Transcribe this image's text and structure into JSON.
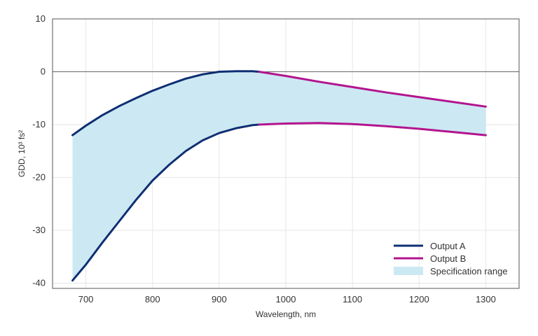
{
  "chart_data": {
    "type": "line",
    "xlabel": "Wavelength, nm",
    "ylabel": "GDD, 10³ fs²",
    "xlim": [
      650,
      1350
    ],
    "ylim": [
      -41,
      10
    ],
    "x_ticks": [
      700,
      800,
      900,
      1000,
      1100,
      1200,
      1300
    ],
    "y_ticks": [
      10,
      0,
      -10,
      -20,
      -30,
      -40
    ],
    "grid": true,
    "zero_line": true,
    "legend_position": "bottom-right",
    "colors": {
      "output_a": "#0f2f73",
      "output_b": "#b3148f",
      "spec_range": "#cce9f3",
      "grid": "#e6e6e6",
      "axis": "#555555"
    },
    "series": [
      {
        "name": "Output A",
        "color": "#0f2f73",
        "upper": {
          "x": [
            680,
            700,
            725,
            750,
            775,
            800,
            825,
            850,
            875,
            900,
            925,
            950,
            960
          ],
          "y": [
            -12,
            -10.2,
            -8.2,
            -6.5,
            -5.0,
            -3.6,
            -2.4,
            -1.3,
            -0.5,
            0.0,
            0.1,
            0.1,
            0.0
          ]
        },
        "lower": {
          "x": [
            680,
            700,
            725,
            750,
            775,
            800,
            825,
            850,
            875,
            900,
            925,
            950,
            960
          ],
          "y": [
            -39.5,
            -36.5,
            -32.3,
            -28.3,
            -24.3,
            -20.6,
            -17.6,
            -15.0,
            -13.0,
            -11.6,
            -10.7,
            -10.1,
            -10.0
          ]
        }
      },
      {
        "name": "Output B",
        "color": "#b3148f",
        "upper": {
          "x": [
            960,
            1000,
            1050,
            1100,
            1150,
            1200,
            1250,
            1300
          ],
          "y": [
            0.0,
            -0.8,
            -1.9,
            -2.9,
            -3.9,
            -4.8,
            -5.7,
            -6.6
          ]
        },
        "lower": {
          "x": [
            960,
            1000,
            1050,
            1100,
            1150,
            1200,
            1250,
            1300
          ],
          "y": [
            -10.0,
            -9.8,
            -9.7,
            -9.9,
            -10.3,
            -10.8,
            -11.4,
            -12.0
          ]
        }
      }
    ],
    "legend": [
      {
        "label": "Output A",
        "kind": "line",
        "color": "#0f2f73"
      },
      {
        "label": "Output B",
        "kind": "line",
        "color": "#b3148f"
      },
      {
        "label": "Specification range",
        "kind": "fill",
        "color": "#cce9f3"
      }
    ]
  }
}
